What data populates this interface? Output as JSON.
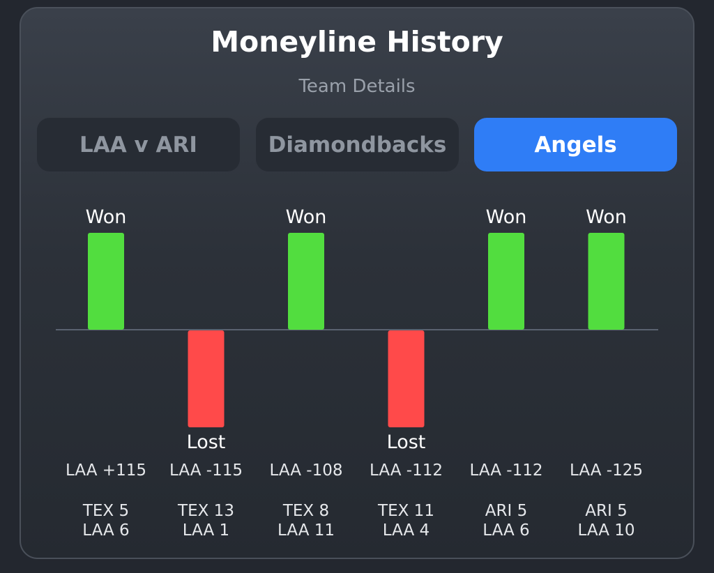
{
  "header": {
    "title": "Moneyline History",
    "subtitle": "Team Details"
  },
  "tabs": [
    {
      "label": "LAA v ARI",
      "active": false
    },
    {
      "label": "Diamondbacks",
      "active": false
    },
    {
      "label": "Angels",
      "active": true
    }
  ],
  "colors": {
    "won": "#52dd3f",
    "lost": "#ff4a4a",
    "accent": "#2f7df6",
    "baseline": "#5a6270"
  },
  "chart_data": {
    "type": "bar",
    "categories": [
      "LAA +115",
      "LAA -115",
      "LAA -108",
      "LAA -112",
      "LAA -112",
      "LAA -125"
    ],
    "values": [
      1,
      -1,
      1,
      -1,
      1,
      1
    ],
    "ylim": [
      -1,
      1
    ],
    "grid": false,
    "result_labels": [
      "Won",
      "Lost",
      "Won",
      "Lost",
      "Won",
      "Won"
    ],
    "scores": [
      [
        "TEX 5",
        "LAA 6"
      ],
      [
        "TEX 13",
        "LAA 1"
      ],
      [
        "TEX 8",
        "LAA 11"
      ],
      [
        "TEX 11",
        "LAA 4"
      ],
      [
        "ARI 5",
        "LAA 6"
      ],
      [
        "ARI 5",
        "LAA 10"
      ]
    ]
  }
}
